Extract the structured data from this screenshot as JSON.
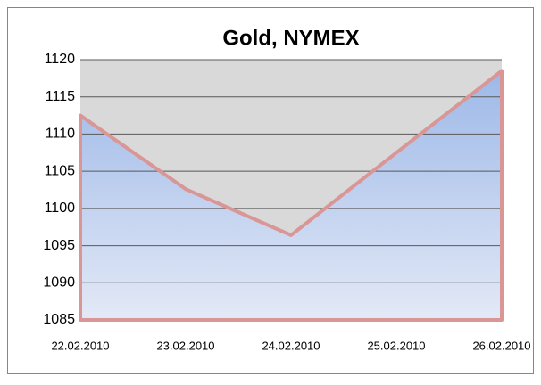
{
  "chart_data": {
    "type": "area",
    "title": "Gold, NYMEX",
    "x": [
      "22.02.2010",
      "23.02.2010",
      "24.02.2010",
      "25.02.2010",
      "26.02.2010"
    ],
    "values": [
      1112.5,
      1102.6,
      1096.4,
      1107.5,
      1118.5
    ],
    "color": "#d99694",
    "fill": "#9db8e8",
    "ylim": [
      1085,
      1120
    ],
    "yticks": [
      1085,
      1090,
      1095,
      1100,
      1105,
      1110,
      1115,
      1120
    ],
    "grid": true
  }
}
